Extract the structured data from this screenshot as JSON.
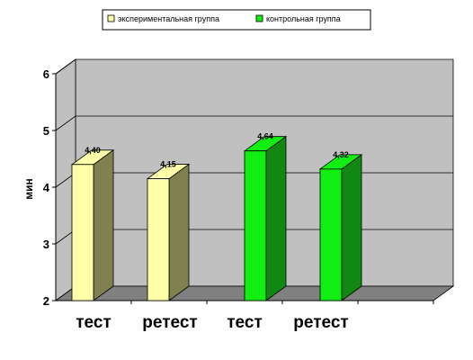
{
  "chart_data": {
    "type": "bar",
    "categories": [
      "тест",
      "ретест",
      "тест",
      "ретест"
    ],
    "series": [
      {
        "name": "экспериментальная группа",
        "color": "#ffffaa",
        "values": [
          4.4,
          4.15,
          null,
          null
        ]
      },
      {
        "name": "контрольная группа",
        "color": "#11ee11",
        "values": [
          null,
          null,
          4.64,
          4.32
        ]
      }
    ],
    "data_labels": [
      "4,40",
      "4,15",
      "4,64",
      "4,32"
    ],
    "ylabel": "мин",
    "ylim": [
      2,
      6
    ],
    "yticks": [
      "2",
      "3",
      "4",
      "5",
      "6"
    ],
    "grid": true,
    "legend_position": "top-center",
    "style": "3d-bar",
    "colors": {
      "wall": "#c0c0c0",
      "floor": "#808080",
      "exp_front": "#ffffaa",
      "exp_side": "#808050",
      "ctrl_front": "#11ee11",
      "ctrl_side": "#118811"
    }
  }
}
